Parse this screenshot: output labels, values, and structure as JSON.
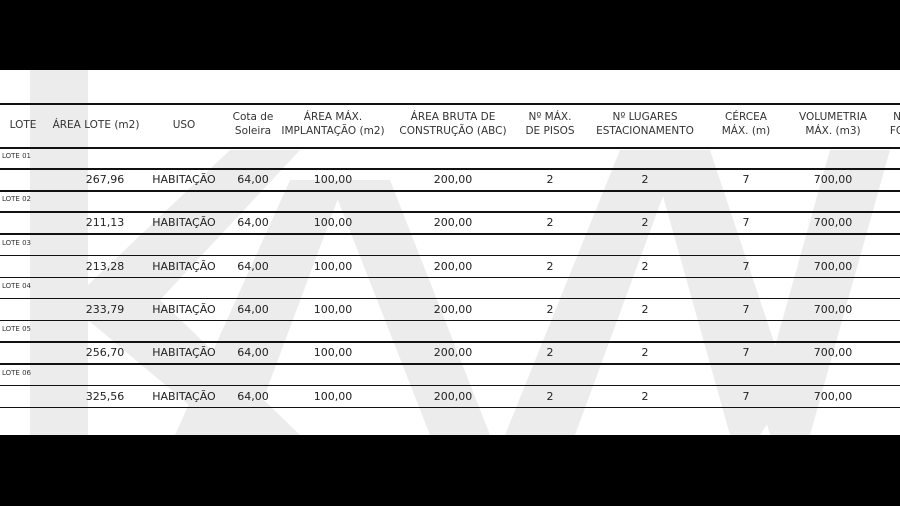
{
  "headers": [
    {
      "l1": "LOTE",
      "l2": ""
    },
    {
      "l1": "ÁREA LOTE (m2)",
      "l2": ""
    },
    {
      "l1": "USO",
      "l2": ""
    },
    {
      "l1": "Cota de",
      "l2": "Soleira"
    },
    {
      "l1": "ÁREA MÁX.",
      "l2": "IMPLANTAÇÃO (m2)"
    },
    {
      "l1": "ÁREA BRUTA DE",
      "l2": "CONSTRUÇÃO (ABC)"
    },
    {
      "l1": "Nº MÁX.",
      "l2": "DE PISOS"
    },
    {
      "l1": "Nº LUGARES",
      "l2": "ESTACIONAMENTO"
    },
    {
      "l1": "CÉRCEA",
      "l2": "MÁX. (m)"
    },
    {
      "l1": "VOLUMETRIA",
      "l2": "MÁX. (m3)"
    },
    {
      "l1": "N",
      "l2": "FO"
    }
  ],
  "rows": [
    {
      "lote": "LOTE 01",
      "area": "267,96",
      "uso": "HABITAÇÃO",
      "cota": "64,00",
      "implantacao": "100,00",
      "abc": "200,00",
      "pisos": "2",
      "lugares": "2",
      "cercea": "7",
      "volumetria": "700,00"
    },
    {
      "lote": "LOTE 02",
      "area": "211,13",
      "uso": "HABITAÇÃO",
      "cota": "64,00",
      "implantacao": "100,00",
      "abc": "200,00",
      "pisos": "2",
      "lugares": "2",
      "cercea": "7",
      "volumetria": "700,00"
    },
    {
      "lote": "LOTE 03",
      "area": "213,28",
      "uso": "HABITAÇÃO",
      "cota": "64,00",
      "implantacao": "100,00",
      "abc": "200,00",
      "pisos": "2",
      "lugares": "2",
      "cercea": "7",
      "volumetria": "700,00"
    },
    {
      "lote": "LOTE 04",
      "area": "233,79",
      "uso": "HABITAÇÃO",
      "cota": "64,00",
      "implantacao": "100,00",
      "abc": "200,00",
      "pisos": "2",
      "lugares": "2",
      "cercea": "7",
      "volumetria": "700,00"
    },
    {
      "lote": "LOTE 05",
      "area": "256,70",
      "uso": "HABITAÇÃO",
      "cota": "64,00",
      "implantacao": "100,00",
      "abc": "200,00",
      "pisos": "2",
      "lugares": "2",
      "cercea": "7",
      "volumetria": "700,00"
    },
    {
      "lote": "LOTE 06",
      "area": "325,56",
      "uso": "HABITAÇÃO",
      "cota": "64,00",
      "implantacao": "100,00",
      "abc": "200,00",
      "pisos": "2",
      "lugares": "2",
      "cercea": "7",
      "volumetria": "700,00"
    }
  ],
  "watermark": {
    "text": "kw",
    "color": "#ececec"
  }
}
